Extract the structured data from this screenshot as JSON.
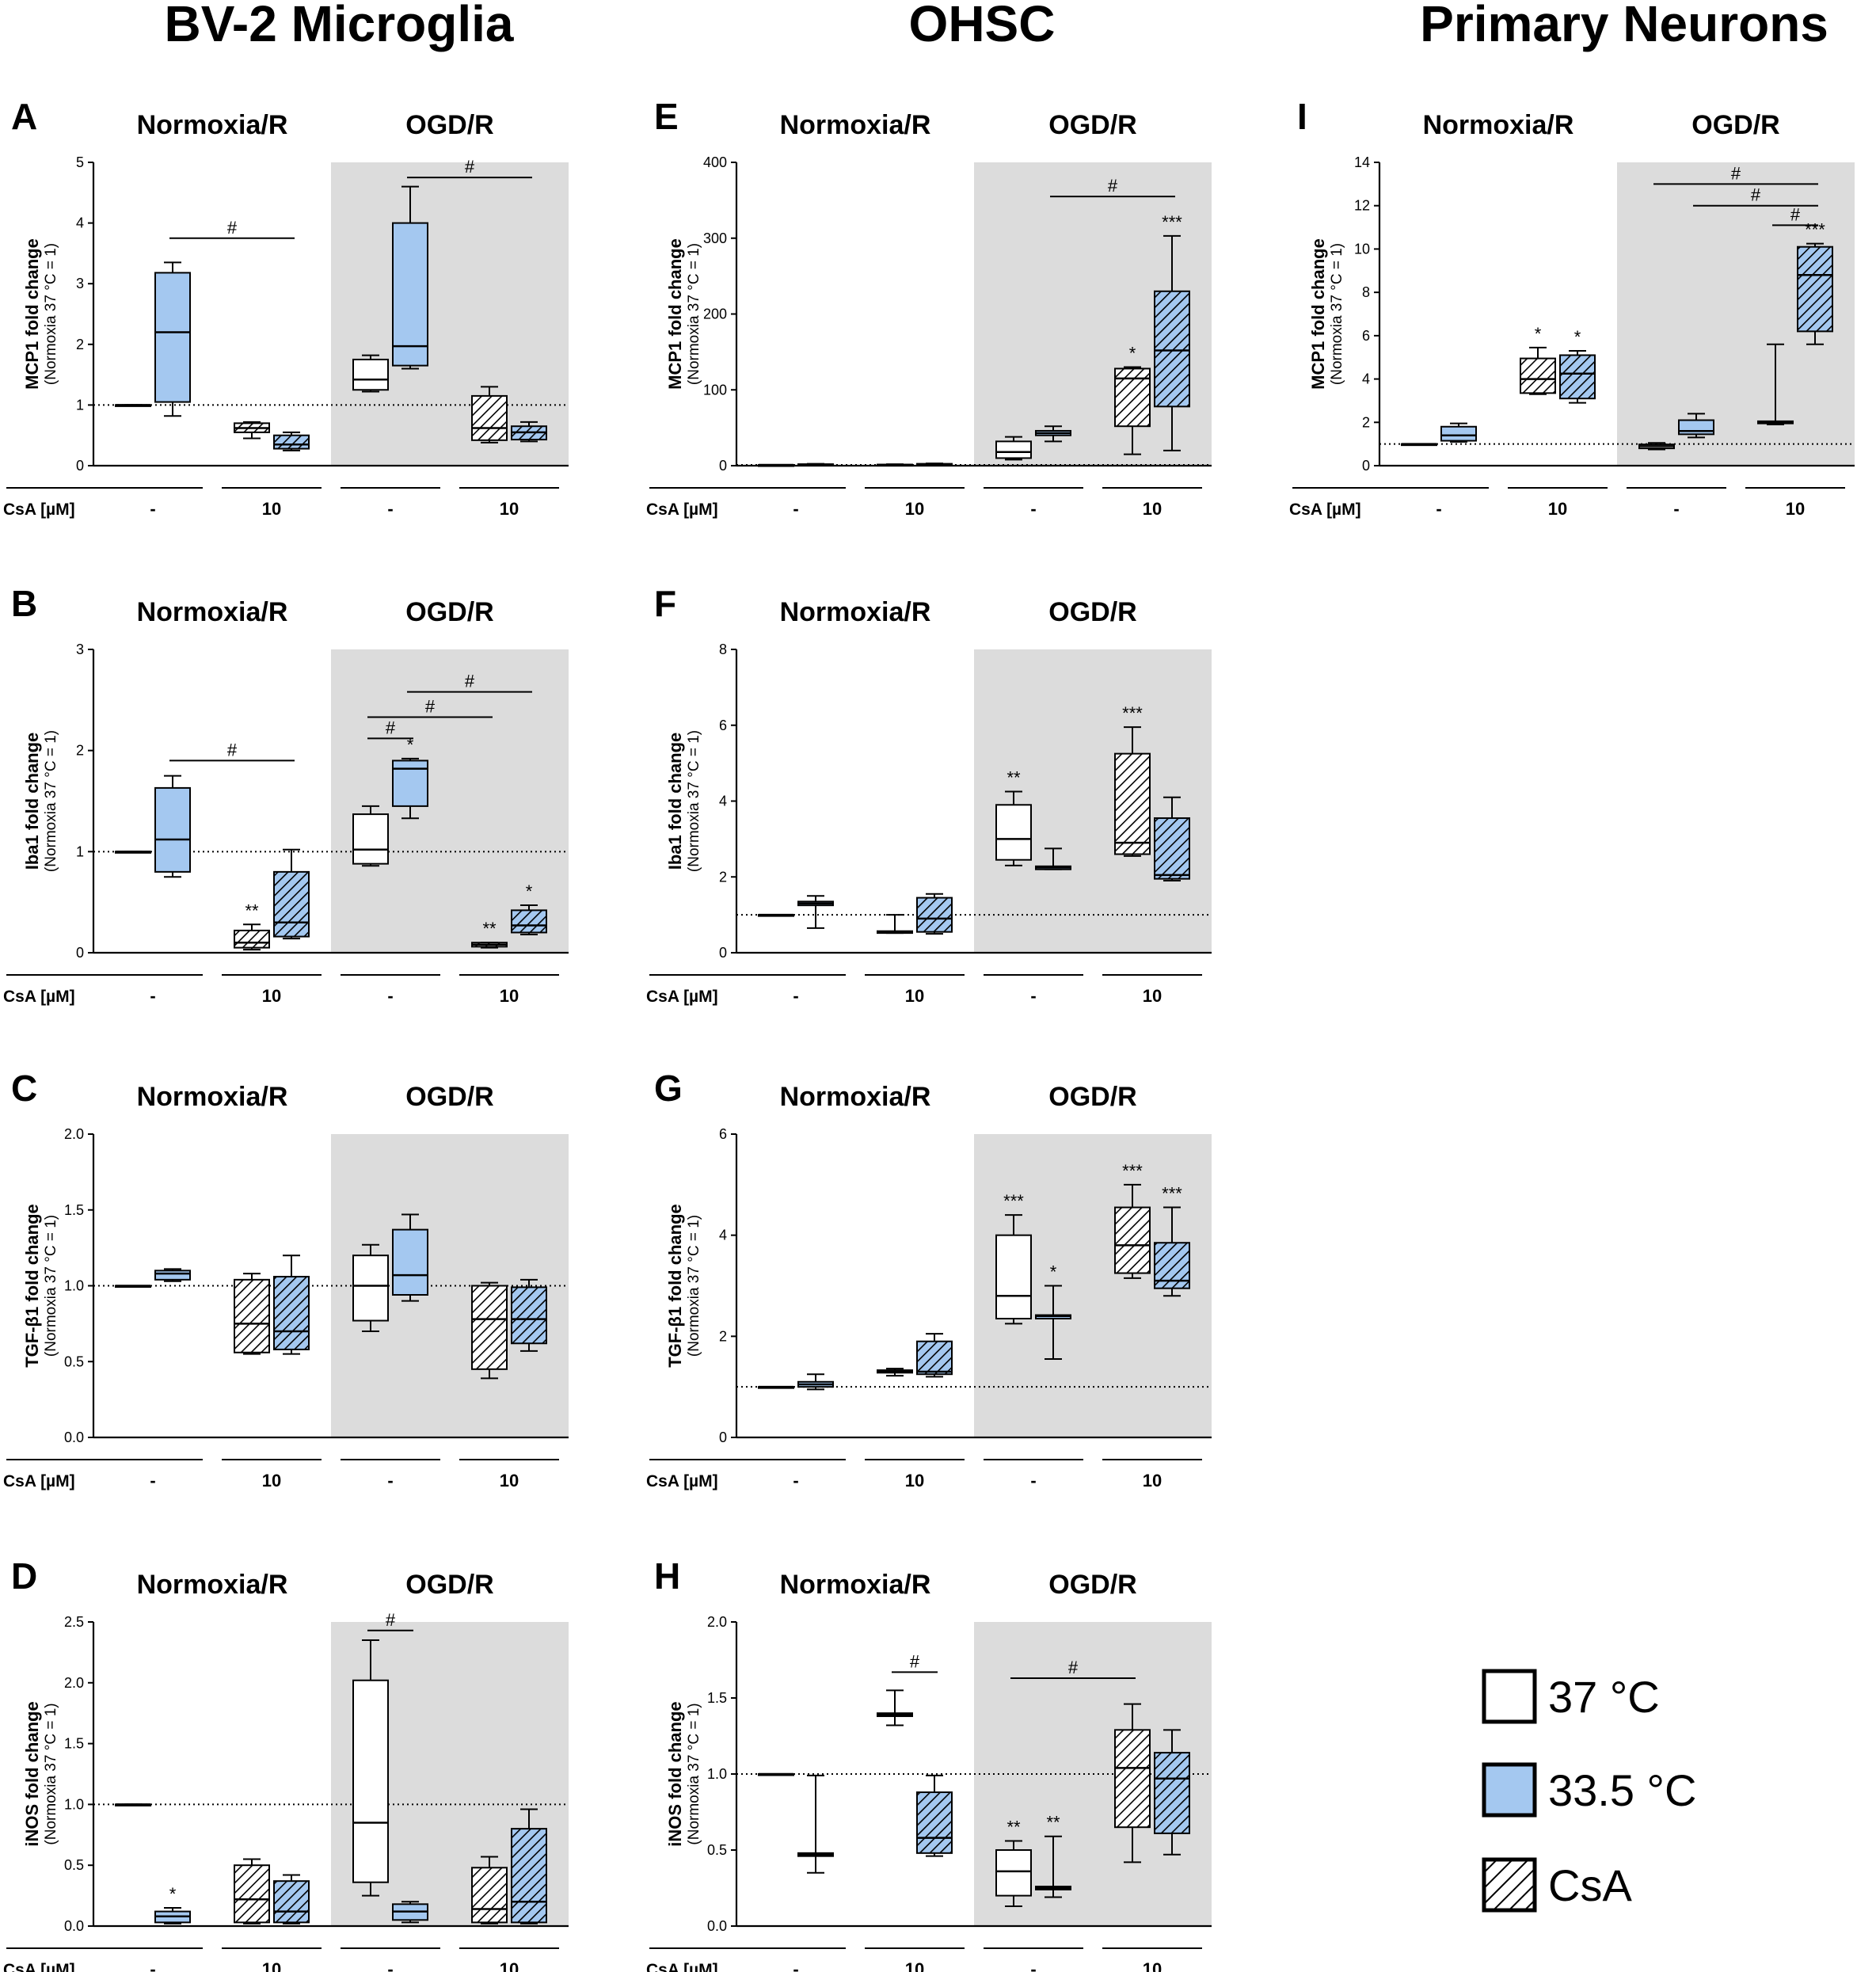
{
  "colors": {
    "c37": "#ffffff",
    "c33": "#a4c8f0",
    "shade": "#dcdcdc",
    "line": "#000000"
  },
  "column_titles": [
    "BV-2 Microglia",
    "OHSC",
    "Primary Neurons"
  ],
  "common": {
    "group_titles": [
      "Normoxia/R",
      "OGD/R"
    ],
    "csa_label": "CsA [µM]",
    "csa_levels": [
      "-",
      "10",
      "-",
      "10"
    ],
    "box_order": [
      "37 °C",
      "33.5 °C",
      "CsA 37 °C",
      "CsA 33.5 °C",
      "37 °C",
      "33.5 °C",
      "CsA 37 °C",
      "CsA 33.5 °C"
    ]
  },
  "legend": [
    {
      "label": "37 °C",
      "fill": "#ffffff",
      "hatch": false
    },
    {
      "label": "33.5 °C",
      "fill": "#a4c8f0",
      "hatch": false
    },
    {
      "label": "CsA",
      "fill": "#ffffff",
      "hatch": true
    }
  ],
  "chart_data": [
    {
      "type": "box",
      "panel": "A",
      "column": "BV-2 Microglia",
      "ylabel": "MCP1 fold change",
      "ysub": "(Normoxia 37 °C = 1)",
      "ylim": [
        0,
        5
      ],
      "yticks": [
        "0",
        "1",
        "2",
        "3",
        "4",
        "5"
      ],
      "reference": 1,
      "boxes": [
        [
          1,
          1,
          1,
          1,
          1
        ],
        [
          0.82,
          1.05,
          2.2,
          3.18,
          3.35
        ],
        [
          0.45,
          0.55,
          0.62,
          0.7,
          0.72
        ],
        [
          0.25,
          0.28,
          0.35,
          0.5,
          0.55
        ],
        [
          1.22,
          1.25,
          1.42,
          1.75,
          1.82
        ],
        [
          1.6,
          1.65,
          1.97,
          4.0,
          4.6
        ],
        [
          0.38,
          0.42,
          0.62,
          1.15,
          1.3
        ],
        [
          0.4,
          0.43,
          0.55,
          0.65,
          0.72
        ]
      ],
      "annotations": [],
      "brackets": [
        {
          "from": 1,
          "to": 3,
          "y": 3.75,
          "label": "#"
        },
        {
          "from": 5,
          "to": 7,
          "y": 4.75,
          "label": "#"
        }
      ]
    },
    {
      "type": "box",
      "panel": "B",
      "column": "BV-2 Microglia",
      "ylabel": "Iba1 fold change",
      "ysub": "(Normoxia 37 °C = 1)",
      "ylim": [
        0,
        3
      ],
      "yticks": [
        "0",
        "1",
        "2",
        "3"
      ],
      "reference": 1,
      "boxes": [
        [
          1,
          1,
          1,
          1,
          1
        ],
        [
          0.75,
          0.8,
          1.12,
          1.63,
          1.75
        ],
        [
          0.03,
          0.05,
          0.1,
          0.22,
          0.28
        ],
        [
          0.14,
          0.16,
          0.3,
          0.8,
          1.02
        ],
        [
          0.86,
          0.88,
          1.02,
          1.37,
          1.45
        ],
        [
          1.33,
          1.45,
          1.82,
          1.9,
          1.92
        ],
        [
          0.05,
          0.06,
          0.08,
          0.1,
          0.1
        ],
        [
          0.18,
          0.2,
          0.27,
          0.42,
          0.47
        ]
      ],
      "annotations": [
        {
          "box": 2,
          "label": "**"
        },
        {
          "box": 5,
          "label": "*"
        },
        {
          "box": 6,
          "label": "**"
        },
        {
          "box": 7,
          "label": "*"
        }
      ],
      "brackets": [
        {
          "from": 1,
          "to": 3,
          "y": 1.9,
          "label": "#"
        },
        {
          "from": 4,
          "to": 5,
          "y": 2.12,
          "label": "#"
        },
        {
          "from": 4,
          "to": 6,
          "y": 2.33,
          "label": "#"
        },
        {
          "from": 5,
          "to": 7,
          "y": 2.58,
          "label": "#"
        }
      ]
    },
    {
      "type": "box",
      "panel": "C",
      "column": "BV-2 Microglia",
      "ylabel": "TGF-β1 fold change",
      "ysub": "(Normoxia 37 °C = 1)",
      "ylim": [
        0,
        2
      ],
      "yticks": [
        "0.0",
        "0.5",
        "1.0",
        "1.5",
        "2.0"
      ],
      "reference": 1,
      "boxes": [
        [
          1,
          1,
          1,
          1,
          1
        ],
        [
          1.03,
          1.04,
          1.08,
          1.1,
          1.11
        ],
        [
          0.55,
          0.56,
          0.75,
          1.04,
          1.08
        ],
        [
          0.55,
          0.58,
          0.7,
          1.06,
          1.2
        ],
        [
          0.7,
          0.77,
          1.0,
          1.2,
          1.27
        ],
        [
          0.9,
          0.94,
          1.07,
          1.37,
          1.47
        ],
        [
          0.39,
          0.45,
          0.78,
          1.0,
          1.02
        ],
        [
          0.57,
          0.62,
          0.78,
          0.99,
          1.04
        ]
      ],
      "annotations": [],
      "brackets": []
    },
    {
      "type": "box",
      "panel": "D",
      "column": "BV-2 Microglia",
      "ylabel": "iNOS fold change",
      "ysub": "(Normoxia 37 °C = 1)",
      "ylim": [
        0,
        2.5
      ],
      "yticks": [
        "0.0",
        "0.5",
        "1.0",
        "1.5",
        "2.0",
        "2.5"
      ],
      "reference": 1,
      "boxes": [
        [
          1,
          1,
          1,
          1,
          1
        ],
        [
          0.02,
          0.03,
          0.08,
          0.12,
          0.15
        ],
        [
          0.02,
          0.03,
          0.22,
          0.5,
          0.55
        ],
        [
          0.02,
          0.03,
          0.12,
          0.37,
          0.42
        ],
        [
          0.25,
          0.36,
          0.85,
          2.02,
          2.35
        ],
        [
          0.03,
          0.05,
          0.12,
          0.18,
          0.2
        ],
        [
          0.02,
          0.03,
          0.14,
          0.48,
          0.57
        ],
        [
          0.02,
          0.03,
          0.2,
          0.8,
          0.96
        ]
      ],
      "annotations": [
        {
          "box": 1,
          "label": "*"
        }
      ],
      "brackets": [
        {
          "from": 4,
          "to": 5,
          "y": 2.43,
          "label": "#"
        }
      ]
    },
    {
      "type": "box",
      "panel": "E",
      "column": "OHSC",
      "ylabel": "MCP1 fold change",
      "ysub": "(Normoxia 37 °C = 1)",
      "ylim": [
        0,
        400
      ],
      "yticks": [
        "0",
        "100",
        "200",
        "300",
        "400"
      ],
      "reference": 1,
      "boxes": [
        [
          1,
          1,
          1,
          1,
          1
        ],
        [
          0.5,
          1,
          1.5,
          2,
          2.5
        ],
        [
          0.5,
          1,
          1.2,
          1.5,
          2
        ],
        [
          0.5,
          1,
          1.5,
          2.5,
          3
        ],
        [
          8,
          10,
          18,
          32,
          38
        ],
        [
          32,
          40,
          43,
          46,
          52
        ],
        [
          15,
          52,
          115,
          128,
          130
        ],
        [
          20,
          78,
          152,
          230,
          303
        ]
      ],
      "annotations": [
        {
          "box": 6,
          "label": "*"
        },
        {
          "box": 7,
          "label": "***"
        }
      ],
      "brackets": [
        {
          "from": 5,
          "to": 7,
          "y": 355,
          "label": "#"
        }
      ]
    },
    {
      "type": "box",
      "panel": "F",
      "column": "OHSC",
      "ylabel": "Iba1 fold change",
      "ysub": "(Normoxia 37 °C = 1)",
      "ylim": [
        0,
        8
      ],
      "yticks": [
        "0",
        "2",
        "4",
        "6",
        "8"
      ],
      "reference": 1,
      "boxes": [
        [
          1,
          1,
          1,
          1,
          1
        ],
        [
          0.65,
          1.25,
          1.3,
          1.35,
          1.5
        ],
        [
          0.52,
          0.52,
          0.55,
          0.57,
          1.0
        ],
        [
          0.5,
          0.55,
          0.9,
          1.45,
          1.55
        ],
        [
          2.3,
          2.45,
          3.0,
          3.9,
          4.25
        ],
        [
          2.2,
          2.2,
          2.25,
          2.28,
          2.75
        ],
        [
          2.55,
          2.6,
          2.9,
          5.25,
          5.95
        ],
        [
          1.9,
          1.95,
          2.05,
          3.55,
          4.1
        ]
      ],
      "annotations": [
        {
          "box": 4,
          "label": "**"
        },
        {
          "box": 6,
          "label": "***"
        }
      ],
      "brackets": []
    },
    {
      "type": "box",
      "panel": "G",
      "column": "OHSC",
      "ylabel": "TGF-β1 fold change",
      "ysub": "(Normoxia 37 °C = 1)",
      "ylim": [
        0,
        6
      ],
      "yticks": [
        "0",
        "2",
        "4",
        "6"
      ],
      "reference": 1,
      "boxes": [
        [
          1,
          1,
          1,
          1,
          1
        ],
        [
          0.95,
          1.0,
          1.05,
          1.1,
          1.25
        ],
        [
          1.22,
          1.28,
          1.3,
          1.33,
          1.36
        ],
        [
          1.2,
          1.25,
          1.3,
          1.9,
          2.05
        ],
        [
          2.25,
          2.35,
          2.8,
          4.0,
          4.4
        ],
        [
          1.55,
          2.35,
          2.4,
          2.42,
          3.0
        ],
        [
          3.15,
          3.25,
          3.8,
          4.55,
          5.0
        ],
        [
          2.8,
          2.95,
          3.1,
          3.85,
          4.55
        ]
      ],
      "annotations": [
        {
          "box": 4,
          "label": "***"
        },
        {
          "box": 5,
          "label": "*"
        },
        {
          "box": 6,
          "label": "***"
        },
        {
          "box": 7,
          "label": "***"
        }
      ],
      "brackets": []
    },
    {
      "type": "box",
      "panel": "H",
      "column": "OHSC",
      "ylabel": "iNOS fold change",
      "ysub": "(Normoxia 37 °C = 1)",
      "ylim": [
        0,
        2
      ],
      "yticks": [
        "0.0",
        "0.5",
        "1.0",
        "1.5",
        "2.0"
      ],
      "reference": 1,
      "boxes": [
        [
          1,
          1,
          1,
          1,
          1
        ],
        [
          0.35,
          0.46,
          0.47,
          0.48,
          0.99
        ],
        [
          1.32,
          1.38,
          1.39,
          1.4,
          1.55
        ],
        [
          0.46,
          0.48,
          0.58,
          0.88,
          0.99
        ],
        [
          0.13,
          0.2,
          0.36,
          0.5,
          0.56
        ],
        [
          0.19,
          0.24,
          0.25,
          0.26,
          0.59
        ],
        [
          0.42,
          0.65,
          1.04,
          1.29,
          1.46
        ],
        [
          0.47,
          0.61,
          0.97,
          1.14,
          1.29
        ]
      ],
      "annotations": [
        {
          "box": 4,
          "label": "**"
        },
        {
          "box": 5,
          "label": "**"
        }
      ],
      "brackets": [
        {
          "from": 2,
          "to": 3,
          "y": 1.67,
          "label": "#"
        },
        {
          "from": 4,
          "to": 6,
          "y": 1.63,
          "label": "#"
        }
      ]
    },
    {
      "type": "box",
      "panel": "I",
      "column": "Primary Neurons",
      "ylabel": "MCP1 fold change",
      "ysub": "(Normoxia 37 °C = 1)",
      "ylim": [
        0,
        14
      ],
      "yticks": [
        "0",
        "2",
        "4",
        "6",
        "8",
        "10",
        "12",
        "14"
      ],
      "reference": 1,
      "boxes": [
        [
          1,
          1,
          1,
          1,
          1
        ],
        [
          1.1,
          1.15,
          1.4,
          1.8,
          1.95
        ],
        [
          3.3,
          3.35,
          4.0,
          4.95,
          5.45
        ],
        [
          2.9,
          3.1,
          4.25,
          5.1,
          5.3
        ],
        [
          0.75,
          0.8,
          0.9,
          0.98,
          1.05
        ],
        [
          1.3,
          1.45,
          1.6,
          2.1,
          2.4
        ],
        [
          1.9,
          1.95,
          2.0,
          2.05,
          5.6
        ],
        [
          5.6,
          6.2,
          8.8,
          10.1,
          10.25
        ]
      ],
      "annotations": [
        {
          "box": 2,
          "label": "*"
        },
        {
          "box": 3,
          "label": "*"
        },
        {
          "box": 7,
          "label": "***"
        }
      ],
      "brackets": [
        {
          "from": 4,
          "to": 7,
          "y": 13.0,
          "label": "#"
        },
        {
          "from": 5,
          "to": 7,
          "y": 12.0,
          "label": "#"
        },
        {
          "from": 6,
          "to": 7,
          "y": 11.1,
          "label": "#"
        }
      ]
    }
  ]
}
